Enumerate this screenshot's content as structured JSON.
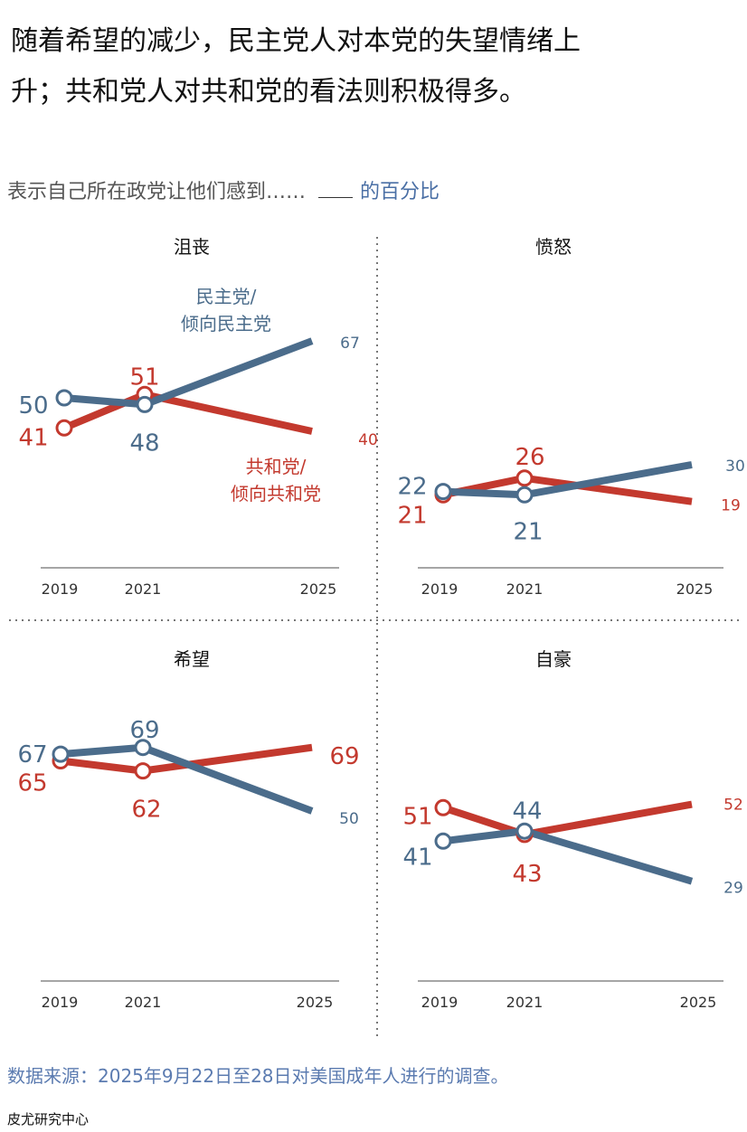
{
  "title": "随着希望的减少，民主党人对本党的失望情绪上升；共和党人对共和党的看法则积极得多。",
  "subtitle": {
    "prefix": "表示自己所在政党让他们感到……",
    "suffix": "的百分比"
  },
  "source": "数据来源：2025年9月22日至28日对美国成年人进行的调查。",
  "organization": "皮尤研究中心",
  "colors": {
    "dem": "#4b6c8b",
    "rep": "#c3392e"
  },
  "chart_data": [
    {
      "type": "line",
      "title": "沮丧",
      "x": [
        "2019",
        "2021",
        "2025"
      ],
      "series": [
        {
          "name": "民主党/倾向民主党",
          "key": "dem",
          "values": [
            50,
            48,
            67
          ]
        },
        {
          "name": "共和党/倾向共和党",
          "key": "rep",
          "values": [
            41,
            51,
            40
          ]
        }
      ],
      "legend": {
        "dem": [
          "民主党/",
          "倾向民主党"
        ],
        "rep": [
          "共和党/",
          "倾向共和党"
        ]
      }
    },
    {
      "type": "line",
      "title": "愤怒",
      "x": [
        "2019",
        "2021",
        "2025"
      ],
      "series": [
        {
          "key": "dem",
          "values": [
            22,
            21,
            30
          ]
        },
        {
          "key": "rep",
          "values": [
            21,
            26,
            19
          ]
        }
      ]
    },
    {
      "type": "line",
      "title": "希望",
      "x": [
        "2019",
        "2021",
        "2025"
      ],
      "series": [
        {
          "key": "dem",
          "values": [
            67,
            69,
            50
          ]
        },
        {
          "key": "rep",
          "values": [
            65,
            62,
            69
          ]
        }
      ]
    },
    {
      "type": "line",
      "title": "自豪",
      "x": [
        "2019",
        "2021",
        "2025"
      ],
      "series": [
        {
          "key": "dem",
          "values": [
            41,
            44,
            29
          ]
        },
        {
          "key": "rep",
          "values": [
            51,
            43,
            52
          ]
        }
      ]
    }
  ]
}
